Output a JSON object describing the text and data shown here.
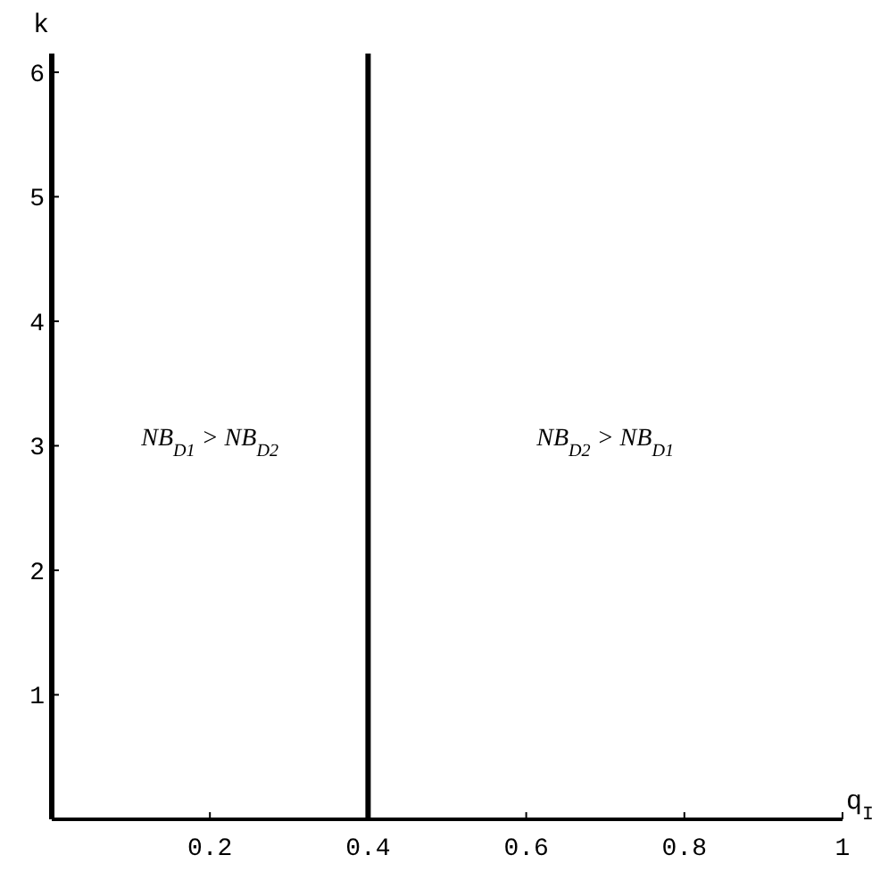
{
  "chart_data": {
    "type": "line",
    "xlabel": "q$_{I}$",
    "ylabel": "k",
    "xlim": [
      0,
      1
    ],
    "ylim": [
      0,
      6.15
    ],
    "xticks": [
      {
        "value": 0.2,
        "label": "0.2"
      },
      {
        "value": 0.4,
        "label": "0.4"
      },
      {
        "value": 0.6,
        "label": "0.6"
      },
      {
        "value": 0.8,
        "label": "0.8"
      },
      {
        "value": 1,
        "label": "1"
      }
    ],
    "yticks": [
      1,
      2,
      3,
      4,
      5,
      6
    ],
    "ref_lines": [
      {
        "axis": "x",
        "value": 0.4,
        "color": "#000000",
        "line_style": "solid"
      }
    ],
    "annotations": [
      "NB$_{D1}$ > NB$_{D2}$",
      "NB$_{D2}$ > NB$_{D1}$"
    ]
  }
}
